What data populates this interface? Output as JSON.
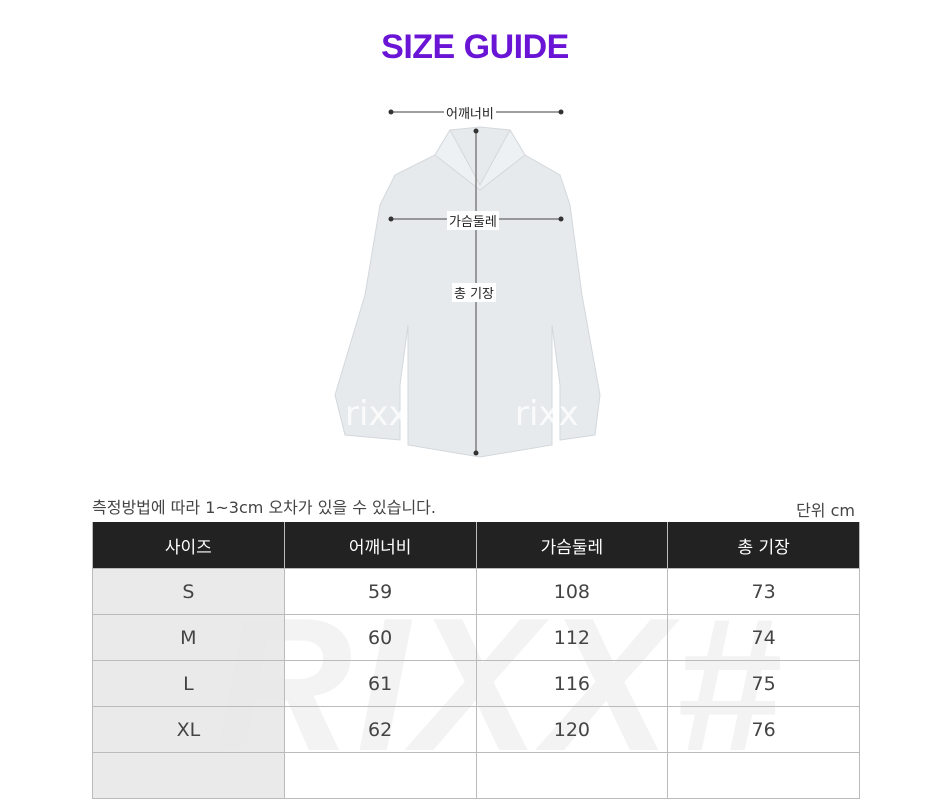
{
  "header": {
    "title": "SIZE GUIDE"
  },
  "diagram": {
    "shoulder": "어깨너비",
    "chest": "가슴둘레",
    "length": "총 기장",
    "watermark": "rixx"
  },
  "note": "측정방법에 따라 1~3cm 오차가 있을 수 있습니다.",
  "unit": "단위 cm",
  "table": {
    "headers": [
      "사이즈",
      "어깨너비",
      "가슴둘레",
      "총 기장"
    ],
    "rows": [
      [
        "S",
        "59",
        "108",
        "73"
      ],
      [
        "M",
        "60",
        "112",
        "74"
      ],
      [
        "L",
        "61",
        "116",
        "75"
      ],
      [
        "XL",
        "62",
        "120",
        "76"
      ],
      [
        "",
        "",
        "",
        ""
      ]
    ],
    "watermark": "RIXX#"
  },
  "colors": {
    "title": "#6a14d6",
    "header_bg": "#222222"
  }
}
